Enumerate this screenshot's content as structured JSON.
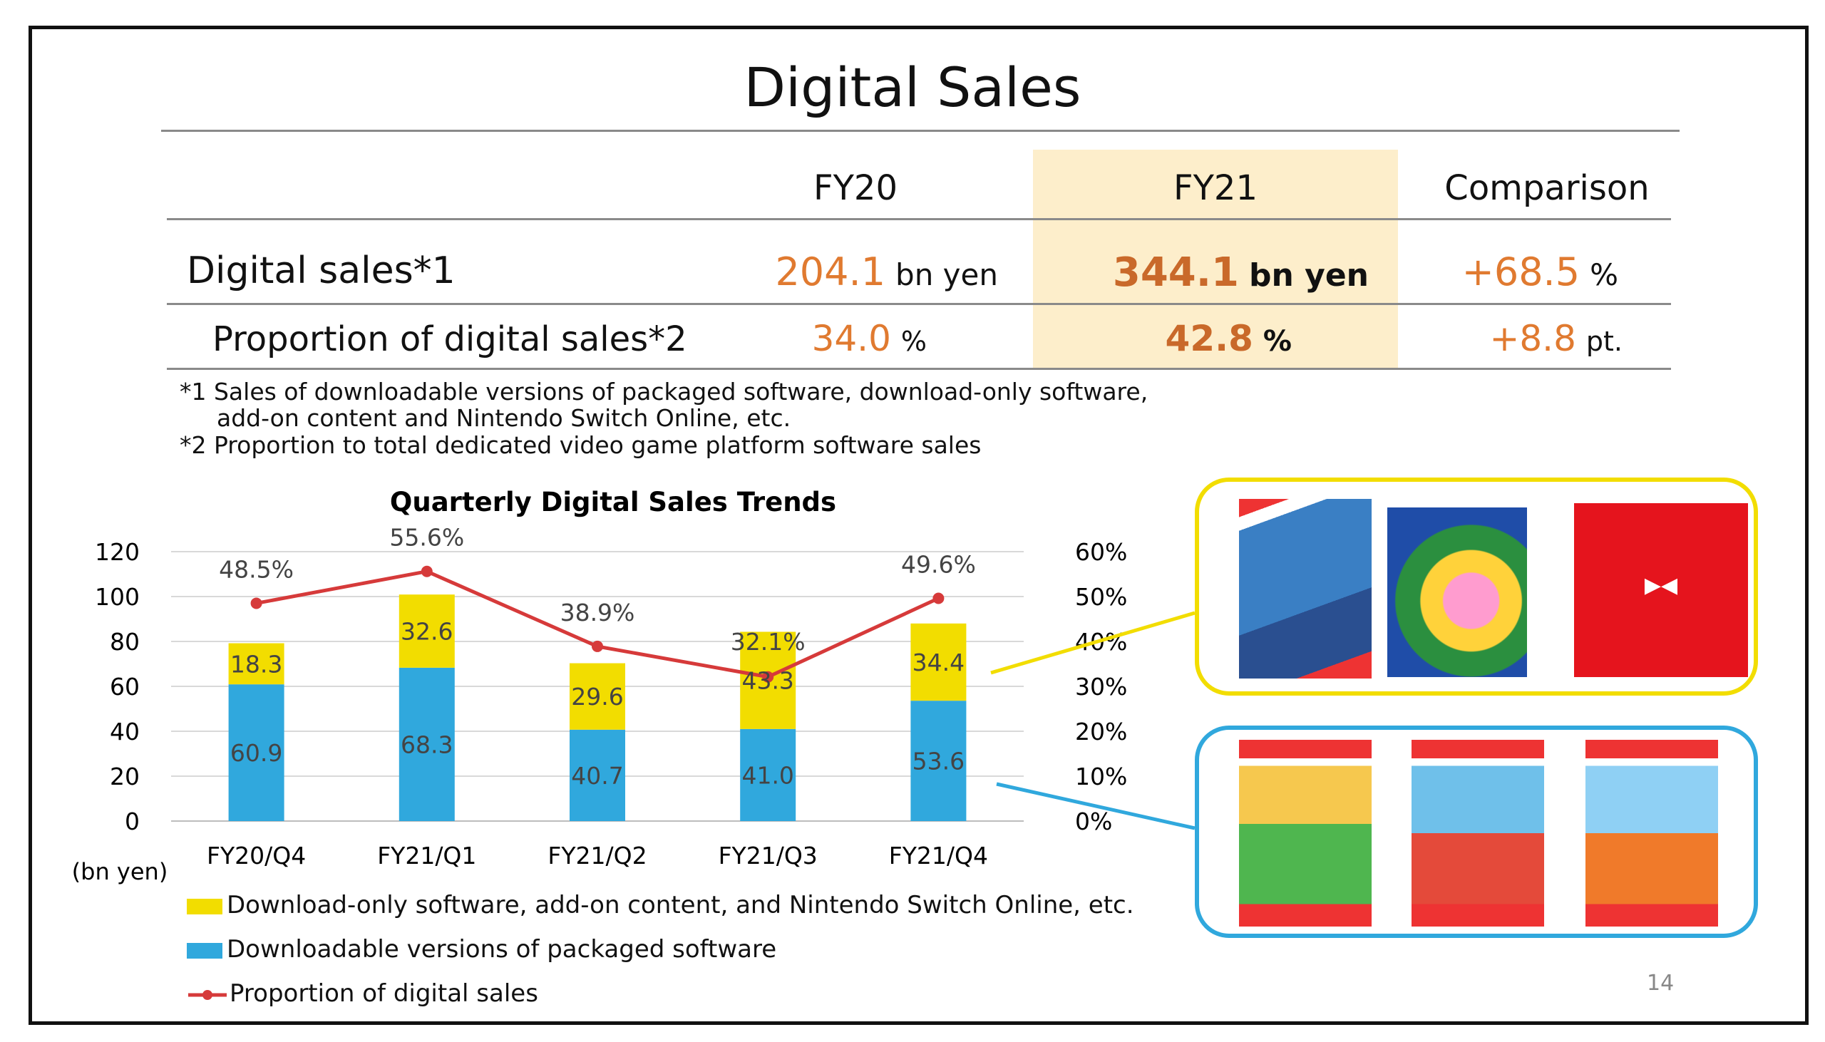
{
  "title": "Digital Sales",
  "table": {
    "headers": [
      "FY20",
      "FY21",
      "Comparison"
    ],
    "rows": [
      {
        "label": "Digital sales*1",
        "fy20": "204.1",
        "fy20_unit": "bn yen",
        "fy21": "344.1",
        "fy21_unit": "bn yen",
        "cmp": "+68.5",
        "cmp_unit": "%"
      },
      {
        "label": "Proportion of digital sales*2",
        "fy20": "34.0",
        "fy20_unit": "%",
        "fy21": "42.8",
        "fy21_unit": "%",
        "cmp": "+8.8",
        "cmp_unit": "pt."
      }
    ]
  },
  "notes": [
    "*1 Sales of downloadable versions of packaged software, download-only software,",
    "add-on content and Nintendo Switch Online, etc.",
    "*2 Proportion to total dedicated video game platform software sales"
  ],
  "chart_data": {
    "type": "bar",
    "title": "Quarterly Digital Sales Trends",
    "stacked": true,
    "categories": [
      "FY20/Q4",
      "FY21/Q1",
      "FY21/Q2",
      "FY21/Q3",
      "FY21/Q4"
    ],
    "series": [
      {
        "name": "Downloadable versions of packaged software",
        "color": "#30a8dd",
        "values": [
          60.9,
          68.3,
          40.7,
          41.0,
          53.6
        ],
        "labels": [
          "60.9",
          "68.3",
          "40.7",
          "41.0",
          "53.6"
        ]
      },
      {
        "name": "Download-only software, add-on content, and Nintendo Switch Online, etc.",
        "color": "#f2dd00",
        "values": [
          18.3,
          32.6,
          29.6,
          43.3,
          34.4
        ],
        "labels": [
          "18.3",
          "32.6",
          "29.6",
          "43.3",
          "34.4"
        ]
      }
    ],
    "line_series": {
      "name": "Proportion of digital sales",
      "color": "#d63a3a",
      "values": [
        48.5,
        55.6,
        38.9,
        32.1,
        49.6
      ],
      "labels": [
        "48.5%",
        "55.6%",
        "38.9%",
        "32.1%",
        "49.6%"
      ]
    },
    "ylim": [
      0,
      120
    ],
    "yticks": [
      "0",
      "20",
      "40",
      "60",
      "80",
      "100",
      "120"
    ],
    "y2lim": [
      0,
      60
    ],
    "y2ticks": [
      "0%",
      "10%",
      "20%",
      "30%",
      "40%",
      "50%",
      "60%"
    ],
    "ylabel": "(bn yen)",
    "grid": true,
    "legend_position": "bottom"
  },
  "colors": {
    "accent_orange": "#e07a30",
    "highlight": "#fdeecb",
    "yellow_border": "#f2dd00",
    "blue_border": "#30a8dd",
    "red_line": "#d63a3a"
  },
  "game_images": {
    "yellow_group": [
      {
        "icon": "pokemon-sword-shield-expansion-pass-icon"
      },
      {
        "icon": "kirby-fighters-2-icon"
      },
      {
        "icon": "nintendo-switch-online-icon"
      }
    ],
    "blue_group": [
      {
        "icon": "animal-crossing-icon"
      },
      {
        "icon": "super-mario-3d-all-stars-icon"
      },
      {
        "icon": "super-mario-3d-world-bowsers-fury-icon"
      }
    ]
  },
  "page_number": "14"
}
